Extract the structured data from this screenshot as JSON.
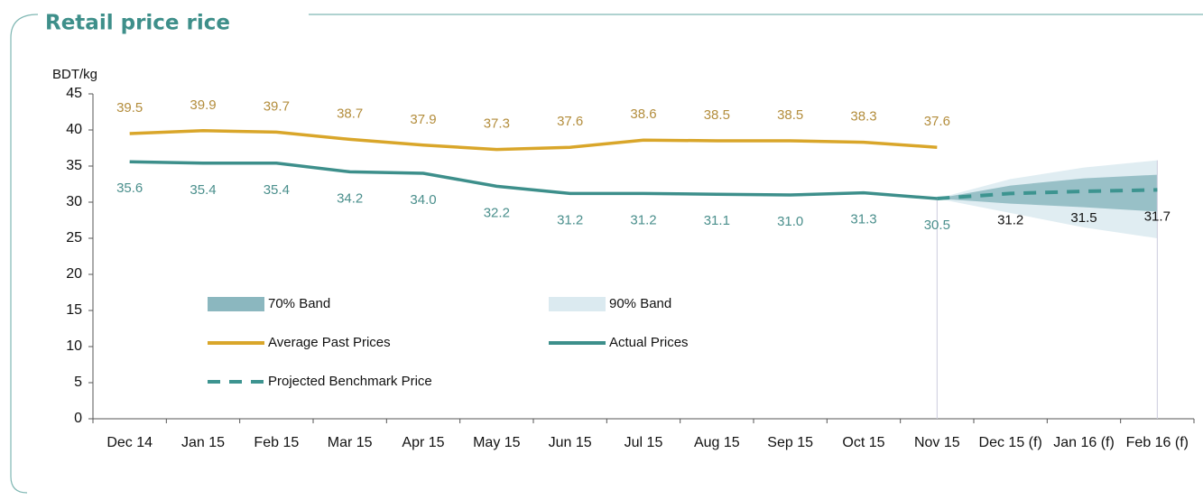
{
  "chart_data": {
    "type": "line",
    "title": "Retail price rice",
    "y_label": "BDT/kg",
    "categories": [
      "Dec 14",
      "Jan 15",
      "Feb 15",
      "Mar 15",
      "Apr 15",
      "May 15",
      "Jun 15",
      "Jul 15",
      "Aug 15",
      "Sep 15",
      "Oct 15",
      "Nov 15",
      "Dec 15 (f)",
      "Jan 16 (f)",
      "Feb 16 (f)"
    ],
    "ylim": [
      0,
      45
    ],
    "yticks": [
      0,
      5,
      10,
      15,
      20,
      25,
      30,
      35,
      40,
      45
    ],
    "bands": [
      {
        "name": "90% Band",
        "color": "#dbeaf0",
        "low": [
          null,
          null,
          null,
          null,
          null,
          null,
          null,
          null,
          null,
          null,
          null,
          30.5,
          28.5,
          26.5,
          25.0
        ],
        "high": [
          null,
          null,
          null,
          null,
          null,
          null,
          null,
          null,
          null,
          null,
          null,
          30.5,
          33.2,
          34.8,
          35.8
        ]
      },
      {
        "name": "70% Band",
        "color": "#8bb7bf",
        "low": [
          null,
          null,
          null,
          null,
          null,
          null,
          null,
          null,
          null,
          null,
          null,
          30.5,
          29.8,
          29.3,
          28.7
        ],
        "high": [
          null,
          null,
          null,
          null,
          null,
          null,
          null,
          null,
          null,
          null,
          null,
          30.5,
          32.3,
          33.3,
          33.8
        ]
      }
    ],
    "series": [
      {
        "name": "Average Past Prices",
        "color": "#d9a62a",
        "label_color": "#b38d3c",
        "values": [
          39.5,
          39.9,
          39.7,
          38.7,
          37.9,
          37.3,
          37.6,
          38.6,
          38.5,
          38.5,
          38.3,
          37.6,
          null,
          null,
          null
        ],
        "value_labels": [
          "39.5",
          "39.9",
          "39.7",
          "38.7",
          "37.9",
          "37.3",
          "37.6",
          "38.6",
          "38.5",
          "38.5",
          "38.3",
          "37.6",
          null,
          null,
          null
        ]
      },
      {
        "name": "Actual Prices",
        "color": "#3d8f8b",
        "label_color": "#4a8f8c",
        "values": [
          35.6,
          35.4,
          35.4,
          34.2,
          34.0,
          32.2,
          31.2,
          31.2,
          31.1,
          31.0,
          31.3,
          30.5,
          null,
          null,
          null
        ],
        "value_labels": [
          "35.6",
          "35.4",
          "35.4",
          "34.2",
          "34.0",
          "32.2",
          "31.2",
          "31.2",
          "31.1",
          "31.0",
          "31.3",
          "30.5",
          null,
          null,
          null
        ]
      },
      {
        "name": "Projected Benchmark Price",
        "color": "#3d9490",
        "label_color": "#111111",
        "dashed": true,
        "values": [
          null,
          null,
          null,
          null,
          null,
          null,
          null,
          null,
          null,
          null,
          null,
          30.5,
          31.2,
          31.5,
          31.7
        ],
        "value_labels": [
          null,
          null,
          null,
          null,
          null,
          null,
          null,
          null,
          null,
          null,
          null,
          null,
          "31.2",
          "31.5",
          "31.7"
        ]
      }
    ]
  }
}
